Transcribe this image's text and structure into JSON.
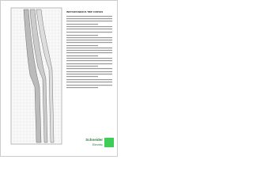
{
  "header": {
    "title": "INSTANTANEOUS TRIP CURVES"
  },
  "logo": {
    "brand": "Schneider",
    "sub": "Electric"
  }
}
